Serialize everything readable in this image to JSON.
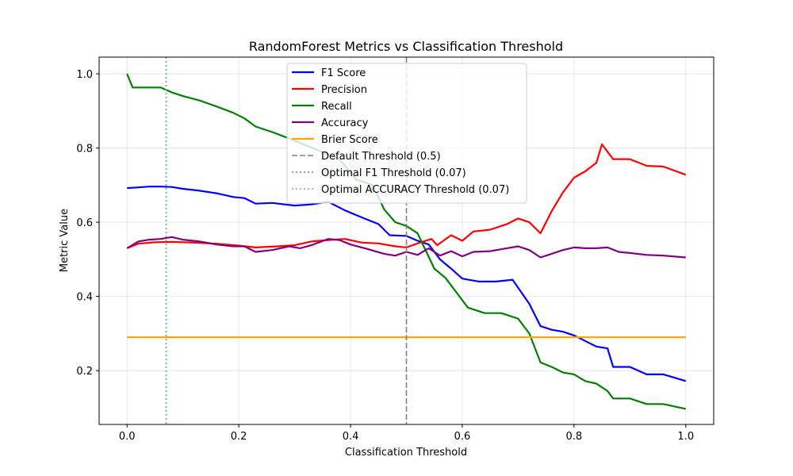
{
  "chart_data": {
    "type": "line",
    "title": "RandomForest Metrics vs Classification Threshold",
    "xlabel": "Classification Threshold",
    "ylabel": "Metric Value",
    "xlim": [
      -0.05,
      1.05
    ],
    "ylim": [
      0.055,
      1.045
    ],
    "xticks": [
      0.0,
      0.2,
      0.4,
      0.6,
      0.8,
      1.0
    ],
    "xtick_labels": [
      "0.0",
      "0.2",
      "0.4",
      "0.6",
      "0.8",
      "1.0"
    ],
    "yticks": [
      0.2,
      0.4,
      0.6,
      0.8,
      1.0
    ],
    "ytick_labels": [
      "0.2",
      "0.4",
      "0.6",
      "0.8",
      "1.0"
    ],
    "grid": true,
    "legend_position": "upper-center",
    "series": [
      {
        "name": "F1 Score",
        "color": "#0000ff",
        "x": [
          0.0,
          0.02,
          0.04,
          0.06,
          0.08,
          0.1,
          0.13,
          0.16,
          0.19,
          0.21,
          0.23,
          0.26,
          0.3,
          0.33,
          0.36,
          0.39,
          0.42,
          0.45,
          0.47,
          0.5,
          0.52,
          0.54,
          0.56,
          0.58,
          0.6,
          0.63,
          0.66,
          0.69,
          0.72,
          0.74,
          0.76,
          0.78,
          0.8,
          0.82,
          0.84,
          0.86,
          0.87,
          0.9,
          0.93,
          0.96,
          1.0
        ],
        "y": [
          0.692,
          0.694,
          0.696,
          0.696,
          0.695,
          0.69,
          0.685,
          0.678,
          0.668,
          0.665,
          0.65,
          0.652,
          0.645,
          0.648,
          0.655,
          0.632,
          0.613,
          0.595,
          0.565,
          0.563,
          0.55,
          0.54,
          0.5,
          0.475,
          0.448,
          0.44,
          0.44,
          0.445,
          0.38,
          0.32,
          0.31,
          0.305,
          0.295,
          0.28,
          0.265,
          0.26,
          0.21,
          0.21,
          0.19,
          0.19,
          0.172
        ]
      },
      {
        "name": "Precision",
        "color": "#ff0000",
        "x": [
          0.0,
          0.02,
          0.05,
          0.08,
          0.12,
          0.16,
          0.2,
          0.23,
          0.27,
          0.3,
          0.33,
          0.36,
          0.39,
          0.42,
          0.45,
          0.48,
          0.5,
          0.52,
          0.545,
          0.555,
          0.58,
          0.6,
          0.62,
          0.65,
          0.68,
          0.7,
          0.72,
          0.74,
          0.76,
          0.78,
          0.8,
          0.82,
          0.84,
          0.85,
          0.87,
          0.9,
          0.93,
          0.96,
          1.0
        ],
        "y": [
          0.53,
          0.542,
          0.546,
          0.547,
          0.545,
          0.542,
          0.537,
          0.532,
          0.535,
          0.538,
          0.548,
          0.552,
          0.555,
          0.545,
          0.543,
          0.535,
          0.532,
          0.543,
          0.555,
          0.538,
          0.565,
          0.55,
          0.575,
          0.58,
          0.595,
          0.61,
          0.6,
          0.57,
          0.63,
          0.68,
          0.72,
          0.737,
          0.76,
          0.81,
          0.77,
          0.77,
          0.752,
          0.75,
          0.728
        ]
      },
      {
        "name": "Recall",
        "color": "#008000",
        "x": [
          0.0,
          0.01,
          0.06,
          0.08,
          0.1,
          0.13,
          0.16,
          0.19,
          0.21,
          0.23,
          0.26,
          0.3,
          0.34,
          0.38,
          0.41,
          0.44,
          0.46,
          0.48,
          0.5,
          0.52,
          0.55,
          0.57,
          0.59,
          0.61,
          0.64,
          0.67,
          0.7,
          0.72,
          0.74,
          0.76,
          0.78,
          0.8,
          0.82,
          0.84,
          0.86,
          0.87,
          0.9,
          0.93,
          0.96,
          1.0
        ],
        "y": [
          1.0,
          0.963,
          0.963,
          0.95,
          0.94,
          0.928,
          0.912,
          0.895,
          0.88,
          0.858,
          0.843,
          0.82,
          0.795,
          0.77,
          0.715,
          0.7,
          0.635,
          0.6,
          0.59,
          0.57,
          0.475,
          0.45,
          0.41,
          0.37,
          0.355,
          0.355,
          0.34,
          0.3,
          0.222,
          0.21,
          0.195,
          0.19,
          0.172,
          0.165,
          0.145,
          0.125,
          0.125,
          0.11,
          0.11,
          0.097
        ]
      },
      {
        "name": "Accuracy",
        "color": "#800080",
        "x": [
          0.0,
          0.02,
          0.04,
          0.06,
          0.08,
          0.1,
          0.13,
          0.16,
          0.19,
          0.21,
          0.23,
          0.26,
          0.29,
          0.31,
          0.33,
          0.36,
          0.38,
          0.4,
          0.43,
          0.46,
          0.48,
          0.5,
          0.52,
          0.54,
          0.56,
          0.58,
          0.6,
          0.62,
          0.65,
          0.68,
          0.7,
          0.72,
          0.74,
          0.76,
          0.78,
          0.8,
          0.82,
          0.84,
          0.86,
          0.88,
          0.9,
          0.93,
          0.96,
          1.0
        ],
        "y": [
          0.53,
          0.548,
          0.553,
          0.555,
          0.56,
          0.553,
          0.548,
          0.54,
          0.535,
          0.535,
          0.52,
          0.525,
          0.535,
          0.53,
          0.538,
          0.555,
          0.552,
          0.54,
          0.528,
          0.515,
          0.51,
          0.52,
          0.512,
          0.53,
          0.51,
          0.522,
          0.508,
          0.52,
          0.522,
          0.53,
          0.535,
          0.525,
          0.505,
          0.515,
          0.525,
          0.532,
          0.53,
          0.53,
          0.532,
          0.52,
          0.517,
          0.512,
          0.51,
          0.505
        ]
      },
      {
        "name": "Brier Score",
        "color": "#ffa500",
        "x": [
          0.0,
          1.0
        ],
        "y": [
          0.29,
          0.29
        ]
      }
    ],
    "reference_lines": [
      {
        "name": "Default Threshold (0.5)",
        "x": 0.5,
        "color": "#808080",
        "style": "dashed"
      },
      {
        "name": "Optimal F1 Threshold (0.07)",
        "x": 0.07,
        "color": "#6f6fff",
        "style": "dotted"
      },
      {
        "name": "Optimal ACCURACY Threshold (0.07)",
        "x": 0.07,
        "color": "#6fbf6f",
        "style": "dotted"
      }
    ]
  }
}
